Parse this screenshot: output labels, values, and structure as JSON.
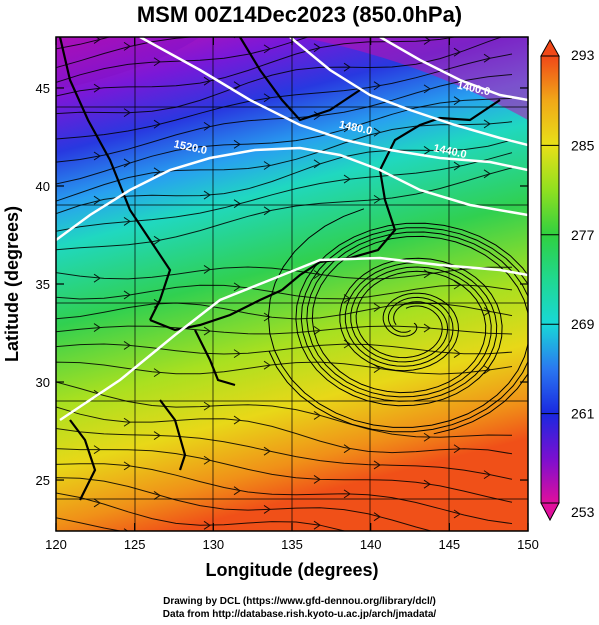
{
  "title": "MSM 00Z14Dec2023 (850.0hPa)",
  "axes": {
    "xlabel": "Longitude (degrees)",
    "ylabel": "Latitude  (degrees)",
    "xlim": [
      120,
      150
    ],
    "ylim": [
      22.4,
      47.6
    ],
    "xticks": [
      "120",
      "125",
      "130",
      "135",
      "140",
      "145",
      "150"
    ],
    "yticks": [
      "25",
      "30",
      "35",
      "40",
      "45"
    ]
  },
  "colorbar": {
    "ticks": [
      "293",
      "285",
      "277",
      "269",
      "261",
      "253"
    ],
    "range": [
      253,
      293
    ],
    "colors": [
      "#e0109c",
      "#7a10d0",
      "#1a28e0",
      "#2a78f0",
      "#18d8d8",
      "#20d890",
      "#30d040",
      "#90e020",
      "#e8e018",
      "#f0a818",
      "#f04818"
    ]
  },
  "contours": [
    {
      "label": "1520.0",
      "lon": 128.5,
      "lat": 41.8
    },
    {
      "label": "1480.0",
      "lon": 139.0,
      "lat": 42.8
    },
    {
      "label": "1440.0",
      "lon": 145.0,
      "lat": 41.6
    },
    {
      "label": "1400.0",
      "lon": 146.5,
      "lat": 44.8
    }
  ],
  "credits": [
    "Drawing by DCL (https://www.gfd-dennou.org/library/dcl/)",
    "Data from http://database.rish.kyoto-u.ac.jp/arch/jmadata/"
  ]
}
